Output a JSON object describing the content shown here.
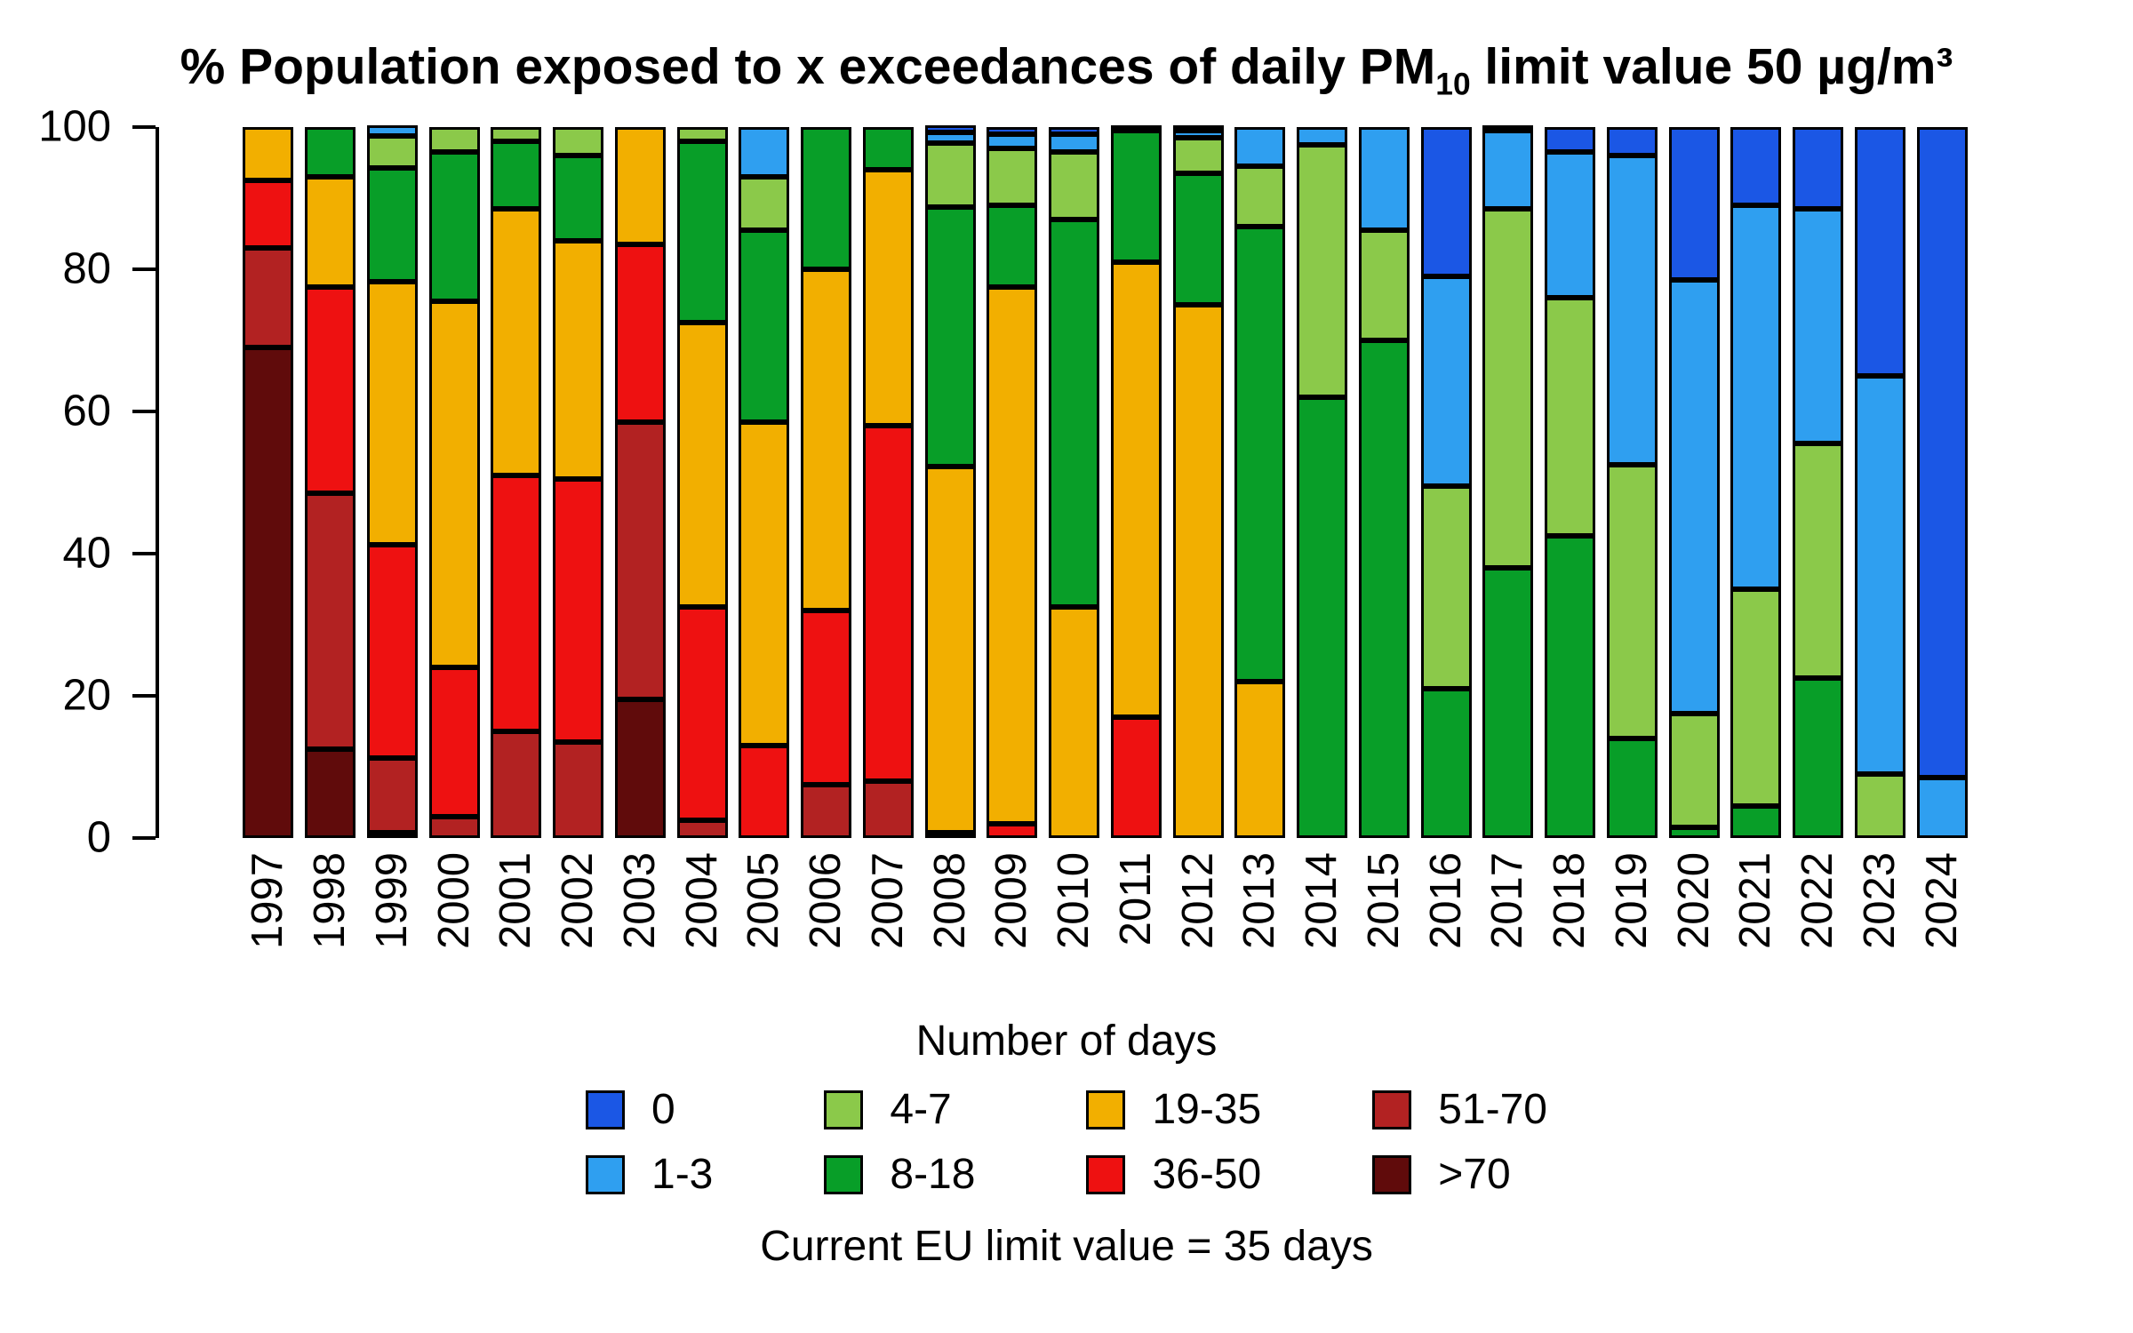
{
  "page": {
    "background": "#ffffff"
  },
  "chart_data": {
    "type": "bar",
    "stacked": true,
    "title": "% Population exposed to x exceedances of daily PM10 limit value 50 µg/m³",
    "title_parts": {
      "pre": "% Population exposed to x exceedances of daily PM",
      "sub": "10",
      "post": " limit value 50 µg/m³"
    },
    "xlabel": "",
    "ylabel": "",
    "ylim": [
      0,
      100
    ],
    "yticks": [
      0,
      20,
      40,
      60,
      80,
      100
    ],
    "grid": false,
    "bar_border_color": "#000000",
    "categories": [
      "1997",
      "1998",
      "1999",
      "2000",
      "2001",
      "2002",
      "2003",
      "2004",
      "2005",
      "2006",
      "2007",
      "2008",
      "2009",
      "2010",
      "2011",
      "2012",
      "2013",
      "2014",
      "2015",
      "2016",
      "2017",
      "2018",
      "2019",
      "2020",
      "2021",
      "2022",
      "2023",
      "2024"
    ],
    "series": [
      {
        "name": ">70",
        "color": "#600b0b",
        "values": [
          69,
          12.5,
          0.5,
          0,
          0,
          0,
          19.5,
          0,
          0,
          0,
          0,
          0,
          0,
          0,
          0,
          0,
          0,
          0,
          0,
          0,
          0,
          0,
          0,
          0,
          0,
          0,
          0,
          0
        ]
      },
      {
        "name": "51-70",
        "color": "#b22222",
        "values": [
          14,
          36,
          10.5,
          3,
          15,
          13.5,
          39,
          2.5,
          0,
          7.5,
          8,
          0,
          0,
          0,
          0,
          0,
          0,
          0,
          0,
          0,
          0,
          0,
          0,
          0,
          0,
          0,
          0,
          0
        ]
      },
      {
        "name": "36-50",
        "color": "#ee1111",
        "values": [
          9.5,
          29,
          30,
          21,
          36,
          37,
          25,
          30,
          13,
          24.5,
          50,
          0.5,
          2,
          0,
          17,
          0,
          0,
          0,
          0,
          0,
          0,
          0,
          0,
          0,
          0,
          0,
          0,
          0
        ]
      },
      {
        "name": "19-35",
        "color": "#f2af00",
        "values": [
          7.5,
          15.5,
          37,
          51.5,
          37.5,
          33.5,
          16.5,
          40,
          45.5,
          48,
          36,
          51.5,
          75.5,
          32.5,
          64,
          75,
          22,
          0,
          0,
          0,
          0,
          0,
          0,
          0,
          0,
          0,
          0,
          0
        ]
      },
      {
        "name": "8-18",
        "color": "#089e28",
        "values": [
          0,
          7,
          16,
          21,
          9.5,
          12,
          0,
          25.5,
          27,
          20,
          6,
          36.5,
          11.5,
          54.5,
          18.5,
          18.5,
          64,
          62,
          70,
          21,
          38,
          42.5,
          14,
          1.5,
          4.5,
          22.5,
          0,
          0
        ]
      },
      {
        "name": "4-7",
        "color": "#8bc94a",
        "values": [
          0,
          0,
          4.5,
          3.5,
          2,
          4,
          0,
          2,
          7.5,
          0,
          0,
          9,
          8,
          9.5,
          0,
          5,
          8.5,
          35.5,
          15.5,
          28.5,
          50.5,
          33.5,
          38.5,
          16,
          30.5,
          33,
          9,
          0
        ]
      },
      {
        "name": "1-3",
        "color": "#2f9ff0",
        "values": [
          0,
          0,
          1.5,
          0,
          0,
          0,
          0,
          0,
          7,
          0,
          0,
          1.5,
          2,
          2.5,
          0,
          1,
          5.5,
          2.5,
          14.5,
          29.5,
          11,
          20.5,
          43.5,
          61,
          54,
          33,
          56,
          8.5
        ]
      },
      {
        "name": "0",
        "color": "#1b57e5",
        "values": [
          0,
          0,
          0,
          0,
          0,
          0,
          0,
          0,
          0,
          0,
          0,
          1,
          1,
          1,
          0.5,
          0.5,
          0,
          0,
          0,
          21,
          0.5,
          3.5,
          4,
          21.5,
          11,
          11.5,
          35,
          91.5
        ]
      }
    ],
    "legend": {
      "title": "Number of days",
      "position": "bottom",
      "entries": [
        {
          "label": "0",
          "color": "#1b57e5"
        },
        {
          "label": "1-3",
          "color": "#2f9ff0"
        },
        {
          "label": "4-7",
          "color": "#8bc94a"
        },
        {
          "label": "8-18",
          "color": "#089e28"
        },
        {
          "label": "19-35",
          "color": "#f2af00"
        },
        {
          "label": "36-50",
          "color": "#ee1111"
        },
        {
          "label": "51-70",
          "color": "#b22222"
        },
        {
          "label": ">70",
          "color": "#600b0b"
        }
      ]
    },
    "caption": "Current EU limit value = 35 days"
  }
}
